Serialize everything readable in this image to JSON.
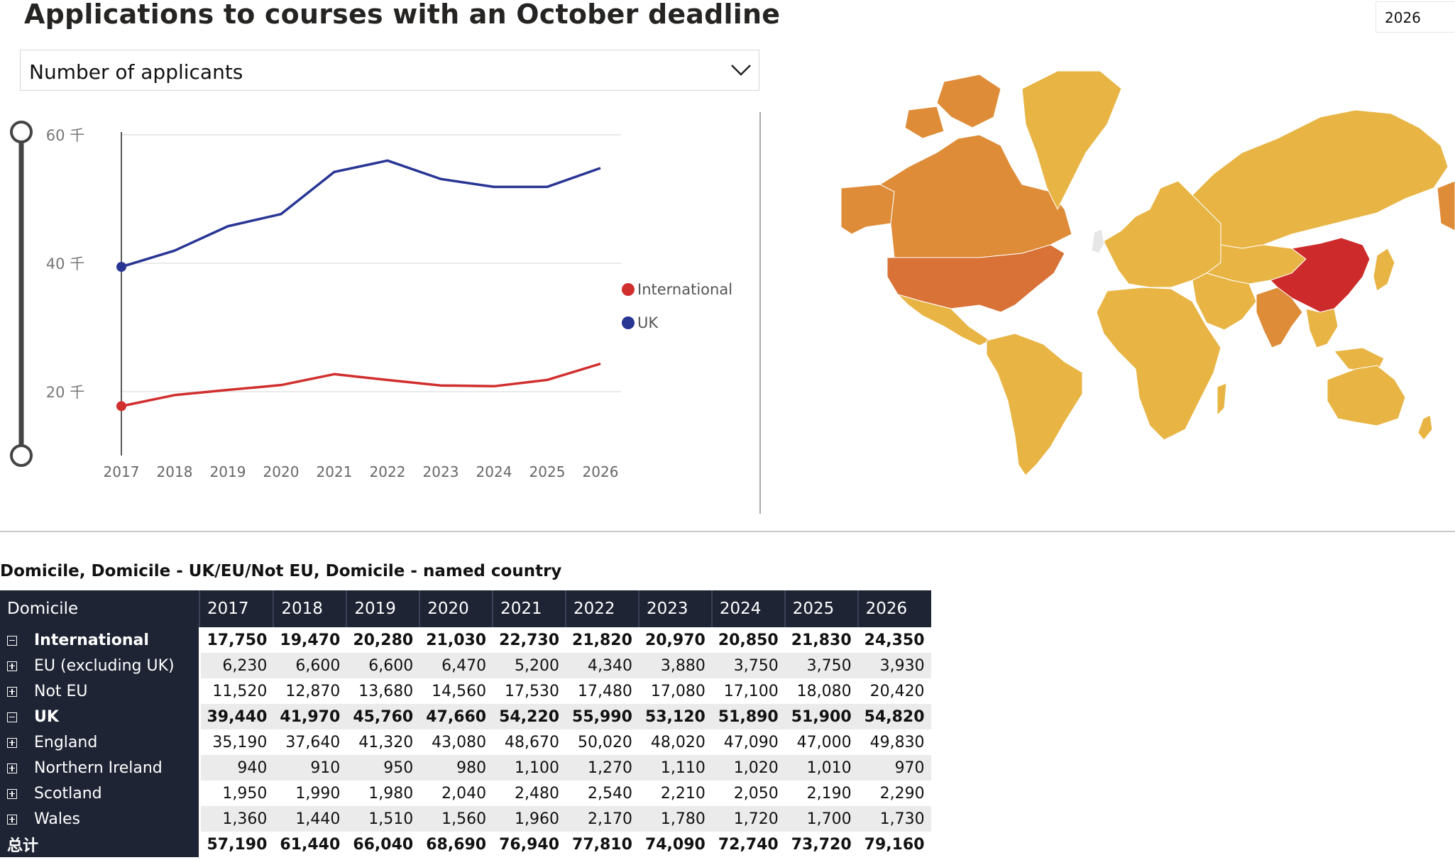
{
  "title": "Applications to courses with an October deadline",
  "year_slicer": "2026",
  "dropdown": {
    "selected": "Number of applicants"
  },
  "chart_data": {
    "type": "line",
    "x": [
      "2017",
      "2018",
      "2019",
      "2020",
      "2021",
      "2022",
      "2023",
      "2024",
      "2025",
      "2026"
    ],
    "series": [
      {
        "name": "International",
        "color": "#d12e2e",
        "values": [
          17750,
          19470,
          20280,
          21030,
          22730,
          21820,
          20970,
          20850,
          21830,
          24350
        ]
      },
      {
        "name": "UK",
        "color": "#283593",
        "values": [
          39440,
          41970,
          45760,
          47660,
          54220,
          55990,
          53120,
          51890,
          51900,
          54820
        ]
      }
    ],
    "y_ticks": [
      {
        "value": 60000,
        "label": "60 千"
      },
      {
        "value": 40000,
        "label": "40 千"
      },
      {
        "value": 20000,
        "label": "20 千"
      }
    ],
    "ylim": [
      10000,
      60000
    ],
    "legend": {
      "position": "right",
      "items": [
        "International",
        "UK"
      ]
    },
    "grid": true
  },
  "map": {
    "colors": {
      "low": "#e8b444",
      "mid": "#de8c38",
      "high": "#d87236",
      "top": "#cd2b2b"
    }
  },
  "table": {
    "title": "Domicile, Domicile - UK/EU/Not EU, Domicile - named country",
    "header": "Domicile",
    "years": [
      "2017",
      "2018",
      "2019",
      "2020",
      "2021",
      "2022",
      "2023",
      "2024",
      "2025",
      "2026"
    ],
    "rows": [
      {
        "label": "International",
        "level": 0,
        "bold": true,
        "expander": "minus",
        "values": [
          "17,750",
          "19,470",
          "20,280",
          "21,030",
          "22,730",
          "21,820",
          "20,970",
          "20,850",
          "21,830",
          "24,350"
        ]
      },
      {
        "label": "EU (excluding UK)",
        "level": 1,
        "bold": false,
        "expander": "plus",
        "values": [
          "6,230",
          "6,600",
          "6,600",
          "6,470",
          "5,200",
          "4,340",
          "3,880",
          "3,750",
          "3,750",
          "3,930"
        ]
      },
      {
        "label": "Not EU",
        "level": 1,
        "bold": false,
        "expander": "plus",
        "values": [
          "11,520",
          "12,870",
          "13,680",
          "14,560",
          "17,530",
          "17,480",
          "17,080",
          "17,100",
          "18,080",
          "20,420"
        ]
      },
      {
        "label": "UK",
        "level": 0,
        "bold": true,
        "expander": "minus",
        "values": [
          "39,440",
          "41,970",
          "45,760",
          "47,660",
          "54,220",
          "55,990",
          "53,120",
          "51,890",
          "51,900",
          "54,820"
        ]
      },
      {
        "label": "England",
        "level": 1,
        "bold": false,
        "expander": "plus",
        "values": [
          "35,190",
          "37,640",
          "41,320",
          "43,080",
          "48,670",
          "50,020",
          "48,020",
          "47,090",
          "47,000",
          "49,830"
        ]
      },
      {
        "label": "Northern Ireland",
        "level": 1,
        "bold": false,
        "expander": "plus",
        "values": [
          "940",
          "910",
          "950",
          "980",
          "1,100",
          "1,270",
          "1,110",
          "1,020",
          "1,010",
          "970"
        ]
      },
      {
        "label": "Scotland",
        "level": 1,
        "bold": false,
        "expander": "plus",
        "values": [
          "1,950",
          "1,990",
          "1,980",
          "2,040",
          "2,480",
          "2,540",
          "2,210",
          "2,050",
          "2,190",
          "2,290"
        ]
      },
      {
        "label": "Wales",
        "level": 1,
        "bold": false,
        "expander": "plus",
        "values": [
          "1,360",
          "1,440",
          "1,510",
          "1,560",
          "1,960",
          "2,170",
          "1,780",
          "1,720",
          "1,700",
          "1,730"
        ]
      },
      {
        "label": "总计",
        "level": 2,
        "bold": true,
        "expander": "none",
        "values": [
          "57,190",
          "61,440",
          "66,040",
          "68,690",
          "76,940",
          "77,810",
          "74,090",
          "72,740",
          "73,720",
          "79,160"
        ]
      }
    ]
  }
}
